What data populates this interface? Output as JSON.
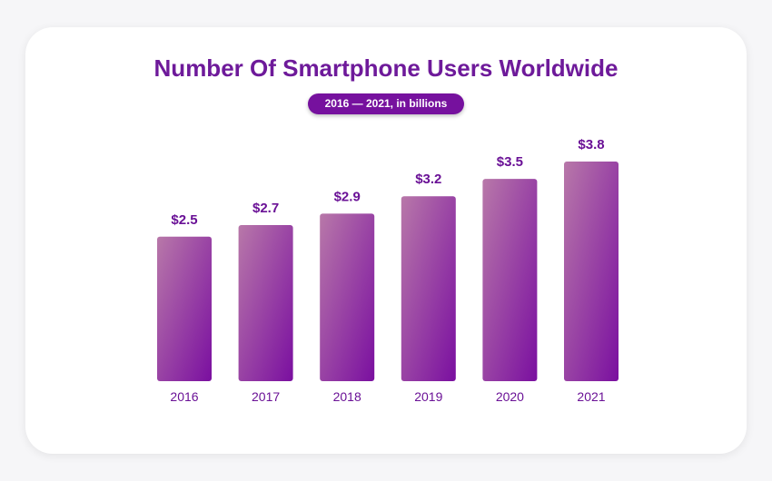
{
  "chart_data": {
    "type": "bar",
    "title": "Number Of Smartphone Users Worldwide",
    "subtitle": "2016 — 2021,  in billions",
    "categories": [
      "2016",
      "2017",
      "2018",
      "2019",
      "2020",
      "2021"
    ],
    "values": [
      2.5,
      2.7,
      2.9,
      3.2,
      3.5,
      3.8
    ],
    "value_labels": [
      "$2.5",
      "$2.7",
      "$2.9",
      "$3.2",
      "$3.5",
      "$3.8"
    ],
    "ylim": [
      0,
      3.8
    ],
    "grid": false,
    "colors": {
      "bar_top": "#b878a9",
      "bar_bottom": "#7a0fa0",
      "accent": "#6e1a9a"
    }
  }
}
